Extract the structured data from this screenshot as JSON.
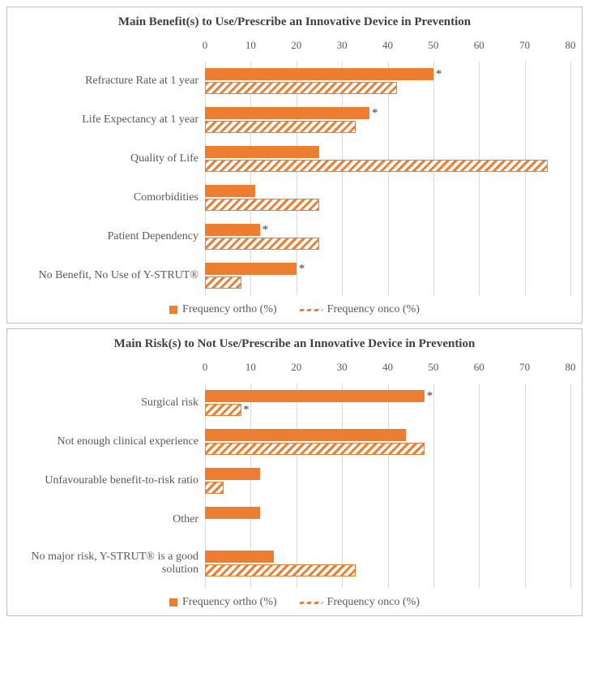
{
  "colors": {
    "series_solid": "#ed7d31",
    "series_hatch": "#ed7d31",
    "grid": "#d9d9d9",
    "text": "#595959",
    "title": "#404040",
    "background": "#ffffff",
    "panel_border": "#bfbfbf"
  },
  "axis": {
    "min": 0,
    "max": 80,
    "tick_step": 10,
    "ticks": [
      0,
      10,
      20,
      30,
      40,
      50,
      60,
      70,
      80
    ]
  },
  "typography": {
    "title_fontsize_pt": 15,
    "label_fontsize_pt": 14,
    "tick_fontsize_pt": 13,
    "font_family": "Palatino Linotype"
  },
  "legend": {
    "series1": "Frequency ortho (%)",
    "series2": "Frequency onco (%)"
  },
  "charts": [
    {
      "title": "Main Benefit(s) to Use/Prescribe an Innovative Device in Prevention",
      "type": "grouped_horizontal_bar",
      "rows": [
        {
          "label": "Refracture Rate at 1 year",
          "ortho": 50,
          "onco": 42,
          "mark_ortho": "*",
          "mark_onco": ""
        },
        {
          "label": "Life Expectancy at 1 year",
          "ortho": 36,
          "onco": 33,
          "mark_ortho": "*",
          "mark_onco": ""
        },
        {
          "label": "Quality of Life",
          "ortho": 25,
          "onco": 75,
          "mark_ortho": "",
          "mark_onco": ""
        },
        {
          "label": "Comorbidities",
          "ortho": 11,
          "onco": 25,
          "mark_ortho": "",
          "mark_onco": ""
        },
        {
          "label": "Patient Dependency",
          "ortho": 12,
          "onco": 25,
          "mark_ortho": "*",
          "mark_onco": ""
        },
        {
          "label": "No Benefit, No Use of Y-STRUT®",
          "ortho": 20,
          "onco": 8,
          "mark_ortho": "*",
          "mark_onco": ""
        }
      ]
    },
    {
      "title": "Main Risk(s) to Not Use/Prescribe an Innovative Device in Prevention",
      "type": "grouped_horizontal_bar",
      "rows": [
        {
          "label": "Surgical risk",
          "ortho": 48,
          "onco": 8,
          "mark_ortho": "*",
          "mark_onco": "*"
        },
        {
          "label": "Not enough clinical experience",
          "ortho": 44,
          "onco": 48,
          "mark_ortho": "",
          "mark_onco": ""
        },
        {
          "label": "Unfavourable benefit-to-risk ratio",
          "ortho": 12,
          "onco": 4,
          "mark_ortho": "",
          "mark_onco": ""
        },
        {
          "label": "Other",
          "ortho": 12,
          "onco": 0,
          "mark_ortho": "",
          "mark_onco": ""
        },
        {
          "label": "No major risk, Y-STRUT® is a good solution",
          "ortho": 15,
          "onco": 33,
          "mark_ortho": "",
          "mark_onco": ""
        }
      ]
    }
  ]
}
